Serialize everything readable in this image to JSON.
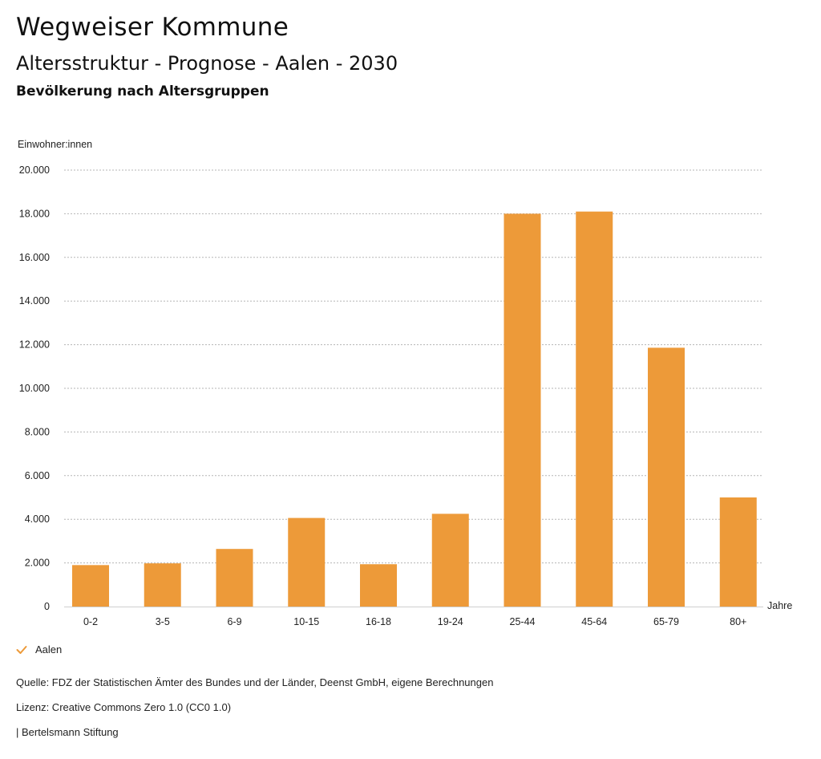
{
  "header": {
    "site_title": "Wegweiser Kommune",
    "chart_title": "Altersstruktur - Prognose - Aalen - 2030",
    "chart_subtitle": "Bevölkerung nach Altersgruppen"
  },
  "chart_data": {
    "type": "bar",
    "title": "Altersstruktur - Prognose - Aalen - 2030",
    "subtitle": "Bevölkerung nach Altersgruppen",
    "ylabel": "Einwohner:innen",
    "xlabel": "Jahre",
    "categories": [
      "0-2",
      "3-5",
      "6-9",
      "10-15",
      "16-18",
      "19-24",
      "25-44",
      "45-64",
      "65-79",
      "80+"
    ],
    "series": [
      {
        "name": "Aalen",
        "color": "#ed9a39",
        "values": [
          1900,
          1980,
          2640,
          4060,
          1940,
          4250,
          18000,
          18100,
          11860,
          5000
        ]
      }
    ],
    "ylim": [
      0,
      20000
    ],
    "yticks": [
      {
        "value": 0,
        "label": "0"
      },
      {
        "value": 2000,
        "label": "2.000"
      },
      {
        "value": 4000,
        "label": "4.000"
      },
      {
        "value": 6000,
        "label": "6.000"
      },
      {
        "value": 8000,
        "label": "8.000"
      },
      {
        "value": 10000,
        "label": "10.000"
      },
      {
        "value": 12000,
        "label": "12.000"
      },
      {
        "value": 14000,
        "label": "14.000"
      },
      {
        "value": 16000,
        "label": "16.000"
      },
      {
        "value": 18000,
        "label": "18.000"
      },
      {
        "value": 20000,
        "label": "20.000"
      }
    ],
    "grid": true,
    "legend_position": "bottom-left"
  },
  "legend": {
    "items": [
      {
        "label": "Aalen",
        "icon": "check-icon",
        "color": "#ed9a39"
      }
    ]
  },
  "footer": {
    "source": "Quelle: FDZ der Statistischen Ämter des Bundes und der Länder, Deenst GmbH, eigene Berechnungen",
    "license": "Lizenz: Creative Commons Zero 1.0 (CC0 1.0)",
    "publisher": "| Bertelsmann Stiftung"
  }
}
